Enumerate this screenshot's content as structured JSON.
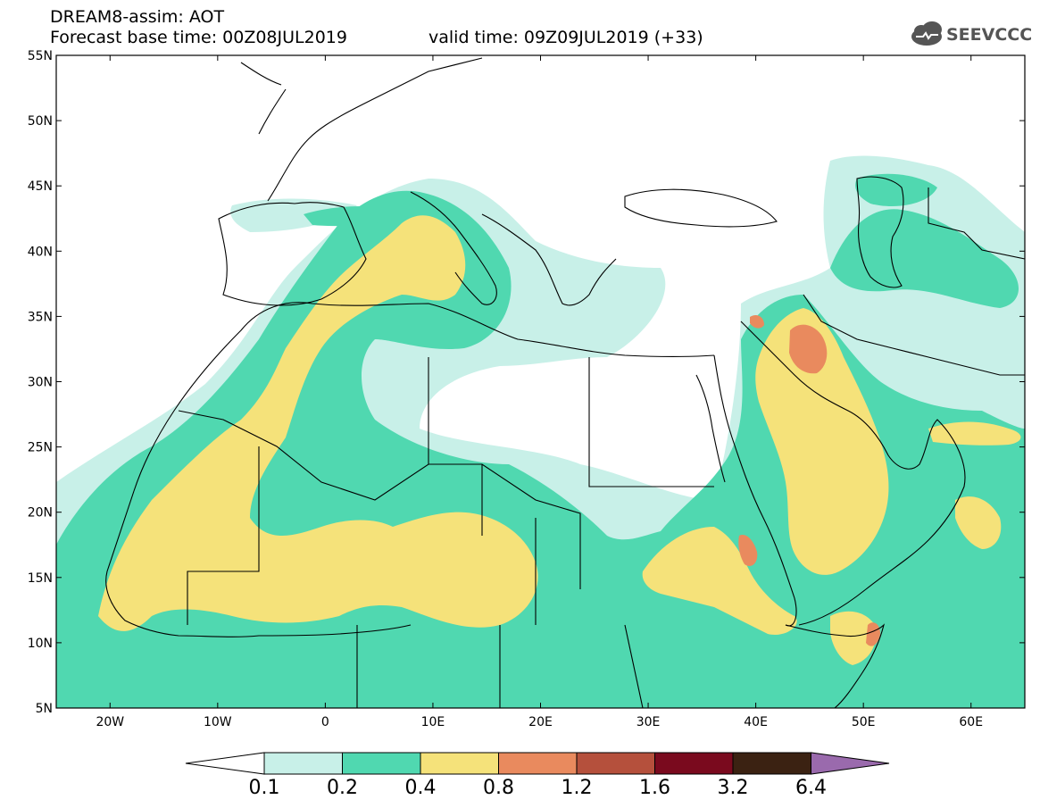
{
  "header": {
    "title": "DREAM8-assim: AOT",
    "base_time": "Forecast base time: 00Z08JUL2019",
    "valid_time": "valid time: 09Z09JUL2019 (+33)",
    "logo_text": "SEEVCCC"
  },
  "map": {
    "projection": "equirectangular",
    "lon_range": [
      -25,
      65
    ],
    "lat_range": [
      5,
      55
    ],
    "lat_ticks": [
      "5N",
      "10N",
      "15N",
      "20N",
      "25N",
      "30N",
      "35N",
      "40N",
      "45N",
      "50N",
      "55N"
    ],
    "lon_ticks": [
      "20W",
      "10W",
      "0",
      "10E",
      "20E",
      "30E",
      "40E",
      "50E",
      "60E"
    ],
    "grid": false
  },
  "legend": {
    "thresholds": [
      "0.1",
      "0.2",
      "0.4",
      "0.8",
      "1.2",
      "1.6",
      "3.2",
      "6.4"
    ],
    "colors": [
      "#c8f0e8",
      "#50d8b0",
      "#f5e27a",
      "#e98a5e",
      "#b5503c",
      "#7a0a1e",
      "#3b2212",
      "#9a6aad"
    ],
    "extend": "both"
  },
  "colors": {
    "level1": "#c8f0e8",
    "level2": "#50d8b0",
    "level3": "#f5e27a",
    "level4": "#e98a5e"
  }
}
